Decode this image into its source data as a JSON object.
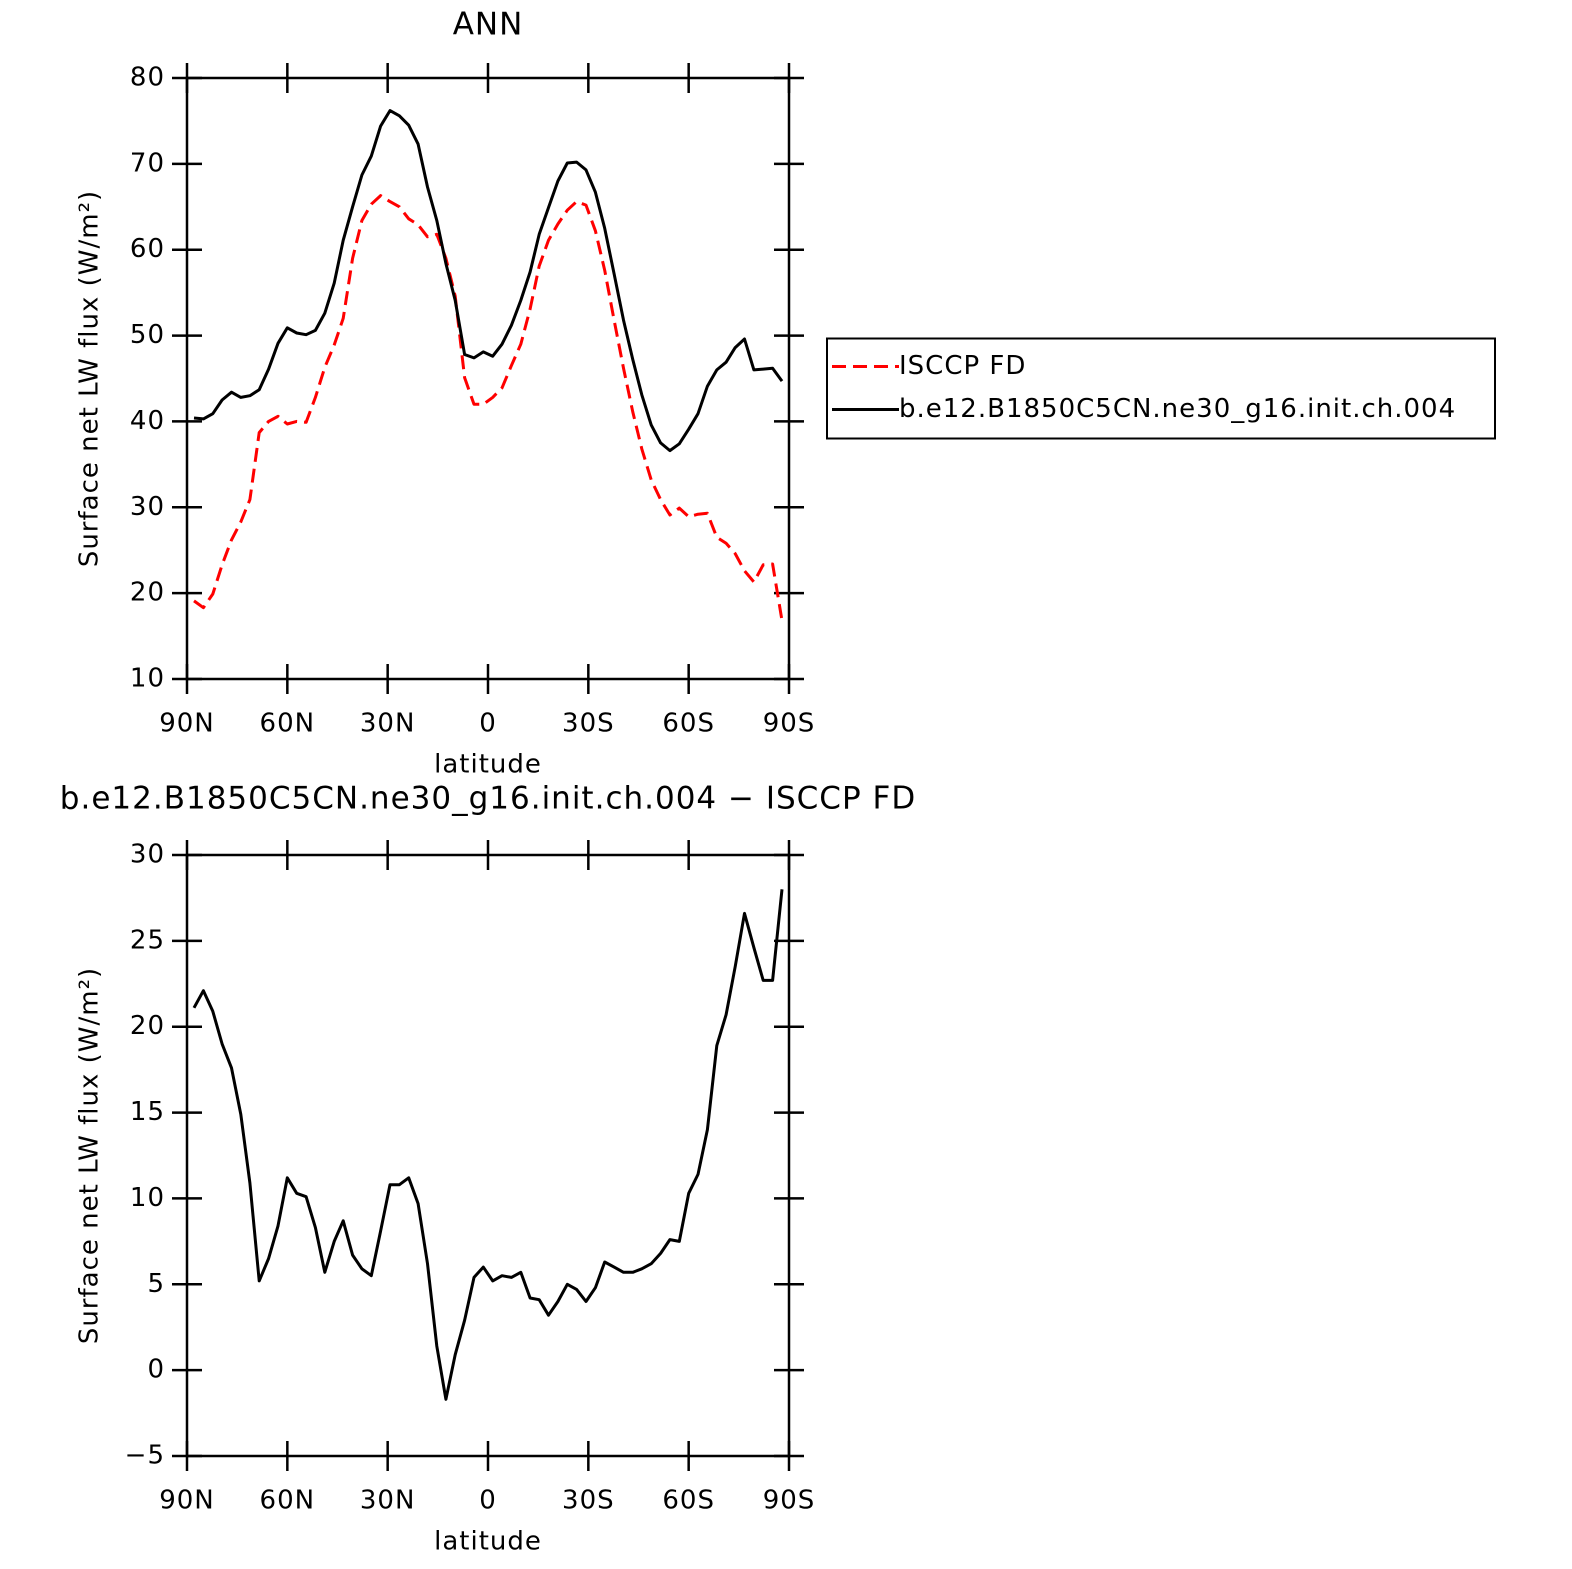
{
  "chart_data": [
    {
      "type": "line",
      "title": "ANN",
      "xlabel": "latitude",
      "ylabel": "Surface net LW flux (W/m²)",
      "x": [
        87.9,
        85.1,
        82.3,
        79.5,
        76.7,
        73.9,
        71.2,
        68.4,
        65.6,
        62.8,
        60.0,
        57.2,
        54.4,
        51.6,
        48.8,
        46.0,
        43.3,
        40.5,
        37.7,
        34.9,
        32.1,
        29.3,
        26.5,
        23.7,
        20.9,
        18.1,
        15.3,
        12.6,
        9.8,
        7.0,
        4.2,
        1.4,
        -1.4,
        -4.2,
        -7.0,
        -9.8,
        -12.6,
        -15.3,
        -18.1,
        -20.9,
        -23.7,
        -26.5,
        -29.3,
        -32.1,
        -34.9,
        -37.7,
        -40.5,
        -43.3,
        -46.0,
        -48.8,
        -51.6,
        -54.4,
        -57.2,
        -60.0,
        -62.8,
        -65.6,
        -68.4,
        -71.2,
        -73.9,
        -76.7,
        -79.5,
        -82.3,
        -85.1,
        -87.9
      ],
      "series": [
        {
          "name": "ISCCP FD",
          "color": "#ff0000",
          "dashed": true,
          "values": [
            19.1,
            18.3,
            19.9,
            23.3,
            26.2,
            28.3,
            30.9,
            38.7,
            40.0,
            40.6,
            39.7,
            40.0,
            39.9,
            42.8,
            46.3,
            48.9,
            52.0,
            59.0,
            63.4,
            65.3,
            66.3,
            65.6,
            65.0,
            63.6,
            62.9,
            61.5,
            61.8,
            59.0,
            54.6,
            45.1,
            42.0,
            42.0,
            42.8,
            43.9,
            46.5,
            49.0,
            53.1,
            58.1,
            61.1,
            63.0,
            64.6,
            65.6,
            65.2,
            62.2,
            57.6,
            51.8,
            46.2,
            41.1,
            36.8,
            33.2,
            30.9,
            29.1,
            29.9,
            28.9,
            29.2,
            29.3,
            26.5,
            25.8,
            24.6,
            22.6,
            21.3,
            23.3,
            23.4,
            16.8
          ]
        },
        {
          "name": "b.e12.B1850C5CN.ne30_g16.init.ch.004",
          "color": "#000000",
          "dashed": false,
          "values": [
            40.4,
            40.3,
            40.9,
            42.5,
            43.4,
            42.8,
            43.0,
            43.7,
            46.1,
            49.1,
            50.9,
            50.3,
            50.1,
            50.6,
            52.6,
            56.1,
            61.1,
            65.0,
            68.7,
            70.9,
            74.4,
            76.2,
            75.6,
            74.5,
            72.3,
            67.3,
            63.4,
            58.4,
            54.1,
            47.8,
            47.4,
            48.1,
            47.6,
            49.0,
            51.2,
            54.1,
            57.4,
            61.8,
            64.9,
            68.0,
            70.1,
            70.2,
            69.3,
            66.7,
            62.5,
            57.2,
            51.8,
            47.2,
            43.1,
            39.6,
            37.5,
            36.6,
            37.4,
            39.1,
            40.9,
            44.1,
            46.0,
            46.9,
            48.6,
            49.6,
            46.0,
            46.1,
            46.2,
            44.7
          ]
        }
      ],
      "xlim": [
        90,
        -90
      ],
      "xticks": [
        {
          "value": 90,
          "label": "90N"
        },
        {
          "value": 60,
          "label": "60N"
        },
        {
          "value": 30,
          "label": "30N"
        },
        0,
        {
          "value": -30,
          "label": "30S"
        },
        {
          "value": -60,
          "label": "60S"
        },
        {
          "value": -90,
          "label": "90S"
        }
      ],
      "ylim": [
        10,
        80
      ],
      "yticks": [
        10,
        20,
        30,
        40,
        50,
        60,
        70,
        80
      ],
      "legend": "right"
    },
    {
      "type": "line",
      "title": "b.e12.B1850C5CN.ne30_g16.init.ch.004 − ISCCP FD",
      "xlabel": "latitude",
      "ylabel": "Surface net LW flux (W/m²)",
      "x": [
        87.9,
        85.1,
        82.3,
        79.5,
        76.7,
        73.9,
        71.2,
        68.4,
        65.6,
        62.8,
        60.0,
        57.2,
        54.4,
        51.6,
        48.8,
        46.0,
        43.3,
        40.5,
        37.7,
        34.9,
        32.1,
        29.3,
        26.5,
        23.7,
        20.9,
        18.1,
        15.3,
        12.6,
        9.8,
        7.0,
        4.2,
        1.4,
        -1.4,
        -4.2,
        -7.0,
        -9.8,
        -12.6,
        -15.3,
        -18.1,
        -20.9,
        -23.7,
        -26.5,
        -29.3,
        -32.1,
        -34.9,
        -37.7,
        -40.5,
        -43.3,
        -46.0,
        -48.8,
        -51.6,
        -54.4,
        -57.2,
        -60.0,
        -62.8,
        -65.6,
        -68.4,
        -71.2,
        -73.9,
        -76.7,
        -79.5,
        -82.3,
        -85.1,
        -87.9
      ],
      "color": "#000000",
      "values": [
        21.1,
        22.1,
        20.9,
        19.0,
        17.6,
        14.9,
        10.9,
        5.2,
        6.5,
        8.4,
        11.2,
        10.3,
        10.1,
        8.3,
        5.7,
        7.5,
        8.7,
        6.7,
        5.9,
        5.5,
        8.1,
        10.8,
        10.8,
        11.2,
        9.7,
        6.2,
        1.4,
        -1.7,
        0.9,
        2.9,
        5.4,
        6.0,
        5.2,
        5.5,
        5.4,
        5.7,
        4.2,
        4.1,
        3.2,
        4.0,
        5.0,
        4.7,
        4.0,
        4.8,
        6.3,
        6.0,
        5.7,
        5.7,
        5.9,
        6.2,
        6.8,
        7.6,
        7.5,
        10.3,
        11.4,
        14.0,
        18.9,
        20.7,
        23.5,
        26.6,
        24.6,
        22.7,
        22.7,
        28.0
      ],
      "xlim": [
        90,
        -90
      ],
      "xticks": [
        {
          "value": 90,
          "label": "90N"
        },
        {
          "value": 60,
          "label": "60N"
        },
        {
          "value": 30,
          "label": "30N"
        },
        0,
        {
          "value": -30,
          "label": "30S"
        },
        {
          "value": -60,
          "label": "60S"
        },
        {
          "value": -90,
          "label": "90S"
        }
      ],
      "ylim": [
        -5,
        30
      ],
      "yticks": [
        -5,
        0,
        5,
        10,
        15,
        20,
        25,
        30
      ]
    }
  ]
}
